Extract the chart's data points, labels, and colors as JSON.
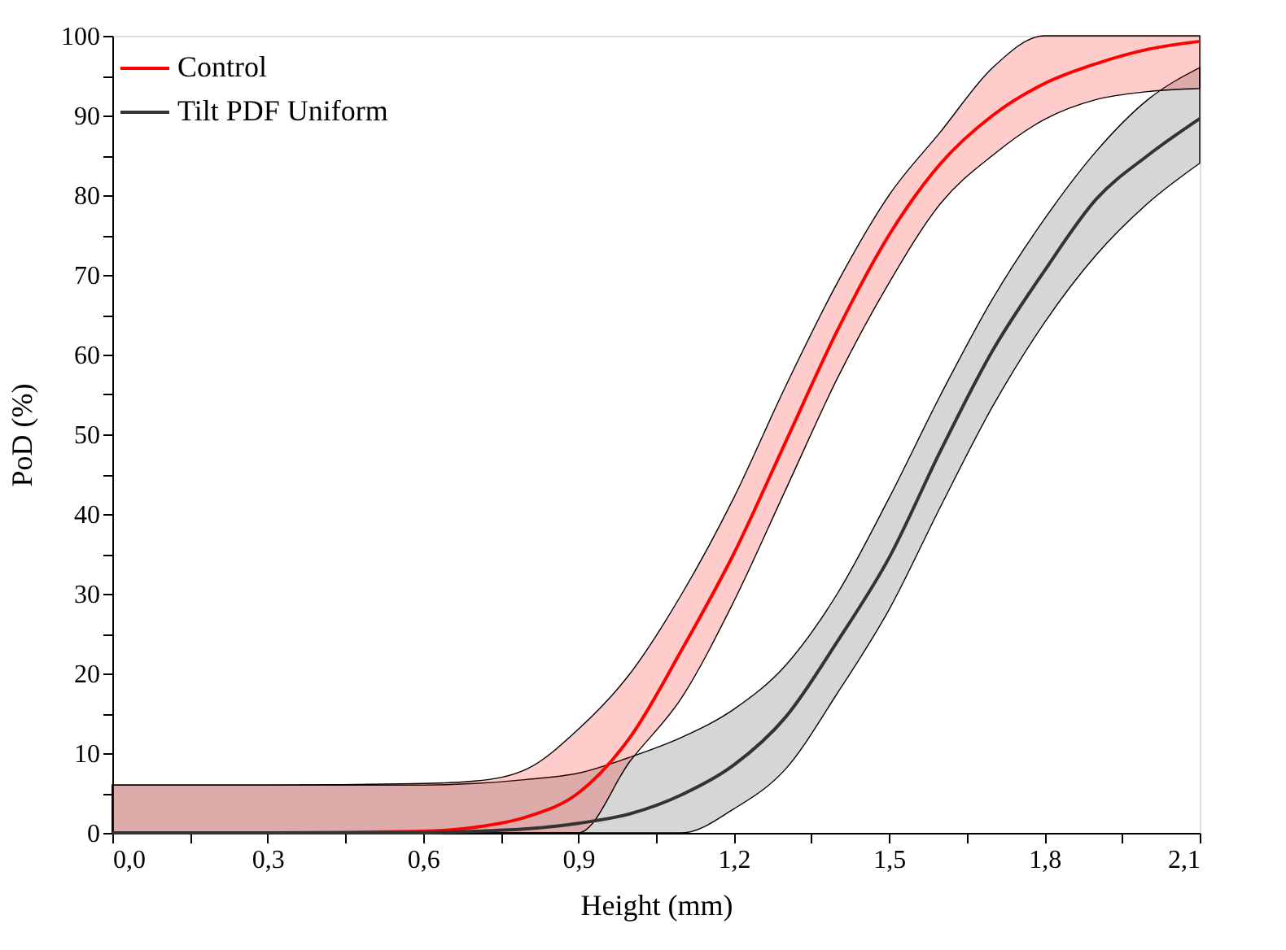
{
  "chart_data": {
    "type": "line",
    "xlabel": "Height (mm)",
    "ylabel": "PoD (%)",
    "legend": "top left",
    "grid": false,
    "marker": "none",
    "line_style": "solid",
    "xlim": [
      0,
      2.1
    ],
    "ylim": [
      0,
      100
    ],
    "xticks": [
      {
        "value": 0,
        "label": "0,0"
      },
      {
        "value": 0.15,
        "label": null
      },
      {
        "value": 0.3,
        "label": "0,3"
      },
      {
        "value": 0.45,
        "label": null
      },
      {
        "value": 0.6,
        "label": "0,6"
      },
      {
        "value": 0.75,
        "label": null
      },
      {
        "value": 0.9,
        "label": "0,9"
      },
      {
        "value": 1.05,
        "label": null
      },
      {
        "value": 1.2,
        "label": "1,2"
      },
      {
        "value": 1.35,
        "label": null
      },
      {
        "value": 1.5,
        "label": "1,5"
      },
      {
        "value": 1.65,
        "label": null
      },
      {
        "value": 1.8,
        "label": "1,8"
      },
      {
        "value": 1.95,
        "label": null
      },
      {
        "value": 2.1,
        "label": "2,1"
      }
    ],
    "yticks": [
      0,
      {
        "value": 5,
        "label": null
      },
      10,
      {
        "value": 15,
        "label": null
      },
      20,
      {
        "value": 25,
        "label": null
      },
      30,
      {
        "value": 35,
        "label": null
      },
      40,
      {
        "value": 45,
        "label": null
      },
      50,
      {
        "value": 55,
        "label": null
      },
      60,
      {
        "value": 65,
        "label": null
      },
      70,
      {
        "value": 75,
        "label": null
      },
      80,
      {
        "value": 85,
        "label": null
      },
      90,
      {
        "value": 95,
        "label": null
      },
      100
    ],
    "series": [
      {
        "name": "Control",
        "color": "#ff0000",
        "x": [
          0,
          0.3,
          0.6,
          0.7,
          0.8,
          0.9,
          1.0,
          1.1,
          1.2,
          1.3,
          1.4,
          1.5,
          1.6,
          1.7,
          1.8,
          1.9,
          2.0,
          2.1
        ],
        "values": [
          0,
          0,
          0.2,
          0.7,
          2,
          5,
          12,
          23,
          35,
          49,
          63,
          75,
          84,
          90,
          94,
          96.5,
          98.3,
          99.3
        ],
        "upper": [
          6,
          6,
          6.2,
          6.5,
          8,
          13,
          20,
          30,
          42,
          56,
          69,
          80,
          88,
          96,
          100,
          100,
          100,
          100
        ],
        "lower": [
          0,
          0,
          0,
          0,
          0,
          0,
          9,
          17,
          29,
          43,
          57,
          69,
          79,
          85,
          89.5,
          92,
          93,
          93.4
        ]
      },
      {
        "name": "Tilt PDF Uniform",
        "color": "#333333",
        "x": [
          0,
          0.3,
          0.6,
          0.7,
          0.8,
          0.9,
          1.0,
          1.1,
          1.2,
          1.3,
          1.4,
          1.5,
          1.6,
          1.7,
          1.8,
          1.9,
          2.0,
          2.1
        ],
        "values": [
          0,
          0,
          0,
          0.2,
          0.5,
          1.2,
          2.4,
          4.8,
          8.5,
          14.5,
          24,
          34.5,
          48,
          60.5,
          70.5,
          79.5,
          85,
          89.6
        ],
        "upper": [
          6,
          6,
          6,
          6.2,
          6.7,
          7.5,
          9.5,
          12,
          15.5,
          21,
          30,
          42,
          55,
          67,
          77,
          85.5,
          92,
          96
        ],
        "lower": [
          0,
          0,
          0,
          0,
          0,
          0,
          0,
          0,
          3,
          8,
          17.5,
          28,
          41,
          53.5,
          64,
          72.5,
          79,
          84
        ]
      }
    ]
  }
}
